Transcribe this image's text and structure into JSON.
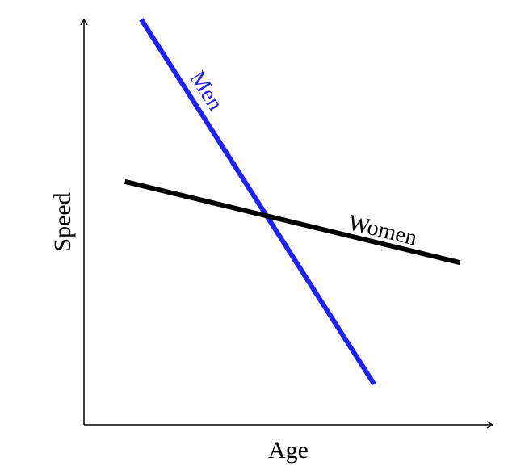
{
  "chart_data": {
    "type": "line",
    "title": "",
    "xlabel": "Age",
    "ylabel": "Speed",
    "grid": false,
    "legend": "none",
    "series": [
      {
        "name": "Men",
        "color": "#1f1fff",
        "points": [
          [
            0.14,
            1.0
          ],
          [
            0.71,
            0.1
          ]
        ]
      },
      {
        "name": "Women",
        "color": "#000000",
        "points": [
          [
            0.1,
            0.6
          ],
          [
            0.92,
            0.4
          ]
        ]
      }
    ],
    "xlim": [
      0,
      1
    ],
    "ylim": [
      0,
      1
    ]
  }
}
